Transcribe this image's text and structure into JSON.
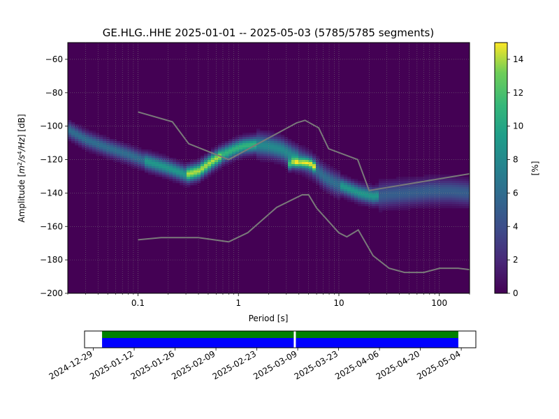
{
  "title": "GE.HLG..HHE   2025-01-01 -- 2025-05-03  (5785/5785 segments)",
  "chart_data": {
    "type": "heatmap",
    "x_scale": "log",
    "xlim": [
      0.02,
      200
    ],
    "ylim": [
      -200,
      -50
    ],
    "xlabel": "Period [s]",
    "ylabel_parts": [
      "Amplitude [",
      "m",
      "2",
      "/s",
      "4",
      "/Hz",
      "] [dB]"
    ],
    "x_ticks": [
      {
        "value": 0.1,
        "label": "0.1"
      },
      {
        "value": 1,
        "label": "1"
      },
      {
        "value": 10,
        "label": "10"
      },
      {
        "value": 100,
        "label": "100"
      }
    ],
    "y_ticks": [
      {
        "value": -60,
        "label": "−60"
      },
      {
        "value": -80,
        "label": "−80"
      },
      {
        "value": -100,
        "label": "−100"
      },
      {
        "value": -120,
        "label": "−120"
      },
      {
        "value": -140,
        "label": "−140"
      },
      {
        "value": -160,
        "label": "−160"
      },
      {
        "value": -180,
        "label": "−180"
      },
      {
        "value": -200,
        "label": "−200"
      }
    ],
    "grid": true,
    "colorbar": {
      "label": "[%]",
      "range": [
        0,
        15
      ],
      "colormap": "viridis",
      "ticks": [
        {
          "value": 0,
          "label": "0"
        },
        {
          "value": 2,
          "label": "2"
        },
        {
          "value": 4,
          "label": "4"
        },
        {
          "value": 6,
          "label": "6"
        },
        {
          "value": 8,
          "label": "8"
        },
        {
          "value": 10,
          "label": "10"
        },
        {
          "value": 12,
          "label": "12"
        },
        {
          "value": 14,
          "label": "14"
        }
      ]
    },
    "mode_curve": {
      "period": [
        0.02,
        0.03,
        0.05,
        0.08,
        0.12,
        0.2,
        0.3,
        0.4,
        0.55,
        0.7,
        0.9,
        1.1,
        1.5,
        2.0,
        2.7,
        3.5,
        4.5,
        5.5,
        7,
        9,
        12,
        16,
        22,
        30,
        50,
        80,
        130,
        200
      ],
      "db": [
        -102,
        -108,
        -113,
        -117,
        -121,
        -125,
        -129,
        -127,
        -121,
        -117,
        -114,
        -112,
        -111,
        -112,
        -114,
        -118,
        -121,
        -124,
        -130,
        -134,
        -137,
        -140,
        -142,
        -141,
        -140,
        -139,
        -139,
        -140
      ]
    },
    "secondary_mode": {
      "period": [
        3,
        3.5,
        4,
        4.5,
        5,
        5.5,
        6
      ],
      "db": [
        -124,
        -122,
        -122,
        -122,
        -122,
        -123,
        -126
      ]
    },
    "spread_db": 6,
    "noise_model_high": {
      "period": [
        0.1,
        0.22,
        0.32,
        0.8,
        3.8,
        4.6,
        6.3,
        7.9,
        15.4,
        20,
        354.8
      ],
      "db": [
        -91.5,
        -97.4,
        -110.5,
        -120,
        -98,
        -96.5,
        -101,
        -113.5,
        -120,
        -138.5,
        -126
      ]
    },
    "noise_model_low": {
      "period": [
        0.1,
        0.17,
        0.4,
        0.8,
        1.24,
        2.4,
        4.3,
        5.0,
        6.0,
        10.0,
        12.0,
        15.6,
        21.9,
        31.6,
        45,
        70,
        101,
        154,
        328
      ],
      "db": [
        -168,
        -166.7,
        -166.7,
        -169.2,
        -163.7,
        -148.6,
        -141.1,
        -141.1,
        -149,
        -163.8,
        -166.2,
        -162.1,
        -177.5,
        -185,
        -187.5,
        -187.5,
        -185,
        -185,
        -187.5
      ]
    },
    "timeline": {
      "xlim": [
        "2024-12-26",
        "2025-05-09"
      ],
      "coverage_start": "2025-01-01",
      "coverage_end": "2025-05-03",
      "gap_date": "2025-03-08",
      "coverage_colors": {
        "data": "#0000ff",
        "used": "#008000"
      },
      "tick_labels": [
        "2024-12-29",
        "2025-01-12",
        "2025-01-26",
        "2025-02-09",
        "2025-02-23",
        "2025-03-09",
        "2025-03-23",
        "2025-04-06",
        "2025-04-20",
        "2025-05-04"
      ]
    }
  }
}
